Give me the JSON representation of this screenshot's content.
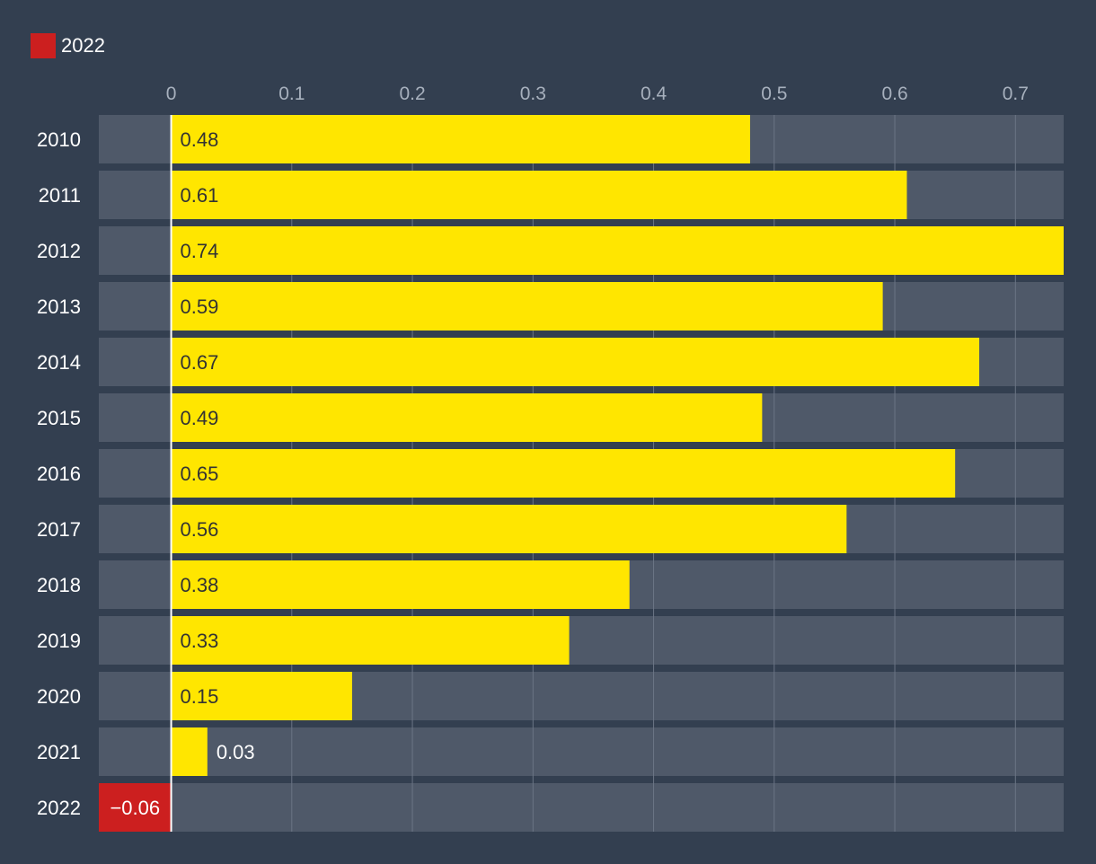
{
  "legend": [
    {
      "label": "2022",
      "color": "#cc1f1f"
    }
  ],
  "colors": {
    "background": "#333f50",
    "track": "#4f5969",
    "positive": "#ffe600",
    "negative": "#cc1f1f",
    "grid": "#6b7585",
    "zero_line": "#ffffff",
    "tick_text": "#a7b0bd",
    "category_text": "#ffffff",
    "label_on_bar": "#333333",
    "label_outside": "#ffffff"
  },
  "chart_data": {
    "type": "bar",
    "orientation": "horizontal",
    "categories": [
      "2010",
      "2011",
      "2012",
      "2013",
      "2014",
      "2015",
      "2016",
      "2017",
      "2018",
      "2019",
      "2020",
      "2021",
      "2022"
    ],
    "values": [
      0.48,
      0.61,
      0.74,
      0.59,
      0.67,
      0.49,
      0.65,
      0.56,
      0.38,
      0.33,
      0.15,
      0.03,
      -0.06
    ],
    "value_labels": [
      "0.48",
      "0.61",
      "0.74",
      "0.59",
      "0.67",
      "0.49",
      "0.65",
      "0.56",
      "0.38",
      "0.33",
      "0.15",
      "0.03",
      "−0.06"
    ],
    "highlight_category": "2022",
    "xlim": [
      -0.06,
      0.74
    ],
    "xticks": [
      0,
      0.1,
      0.2,
      0.3,
      0.4,
      0.5,
      0.6,
      0.7
    ],
    "xtick_labels": [
      "0",
      "0.1",
      "0.2",
      "0.3",
      "0.4",
      "0.5",
      "0.6",
      "0.7"
    ],
    "grid": true,
    "legend_position": "top-left",
    "axis_position": "top",
    "title": "",
    "xlabel": "",
    "ylabel": ""
  }
}
